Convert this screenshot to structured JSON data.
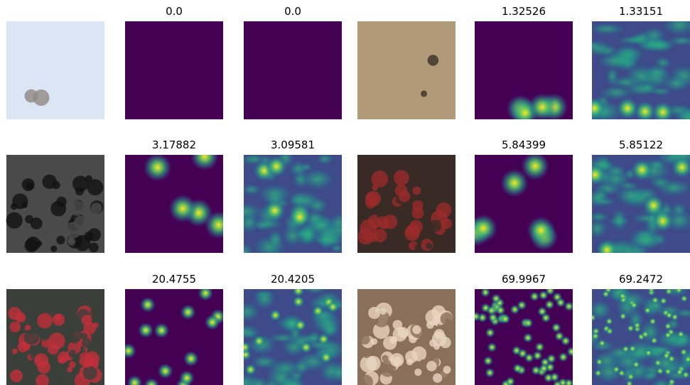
{
  "rows": [
    {
      "groups": [
        {
          "titles": [
            "0.0",
            "0.0"
          ]
        },
        {
          "titles": [
            "1.32526",
            "1.33151"
          ]
        }
      ]
    },
    {
      "groups": [
        {
          "titles": [
            "3.17882",
            "3.09581"
          ]
        },
        {
          "titles": [
            "5.84399",
            "5.85122"
          ]
        }
      ]
    },
    {
      "groups": [
        {
          "titles": [
            "20.4755",
            "20.4205"
          ]
        },
        {
          "titles": [
            "69.9967",
            "69.2472"
          ]
        }
      ]
    }
  ]
}
